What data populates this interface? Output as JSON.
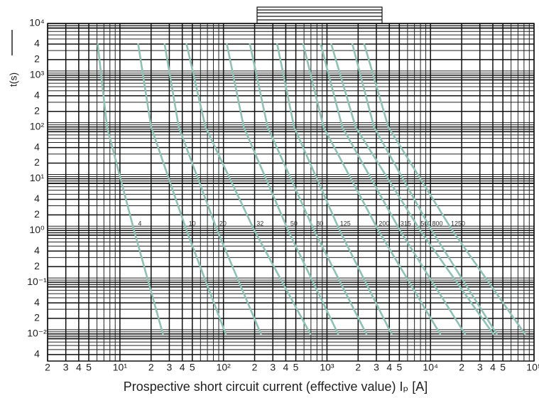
{
  "chart_data": {
    "type": "line",
    "x_label": "Prospective short circuit current (effective value) Iₚ [A]",
    "y_label": "t(s)",
    "log_x": true,
    "log_y": true,
    "grid": true,
    "minor_grid": true,
    "xlim": [
      2,
      100000
    ],
    "ylim": [
      0.003,
      10000
    ],
    "xticks": [
      2,
      3,
      4,
      5,
      {
        "value": 10,
        "label": "10¹"
      },
      {
        "value": 20,
        "label": "2"
      },
      {
        "value": 30,
        "label": "3"
      },
      {
        "value": 40,
        "label": "4"
      },
      {
        "value": 50,
        "label": "5"
      },
      {
        "value": 100,
        "label": "10²"
      },
      {
        "value": 200,
        "label": "2"
      },
      {
        "value": 300,
        "label": "3"
      },
      {
        "value": 400,
        "label": "4"
      },
      {
        "value": 500,
        "label": "5"
      },
      {
        "value": 1000,
        "label": "10³"
      },
      {
        "value": 2000,
        "label": "2"
      },
      {
        "value": 3000,
        "label": "3"
      },
      {
        "value": 4000,
        "label": "4"
      },
      {
        "value": 5000,
        "label": "5"
      },
      {
        "value": 10000,
        "label": "10⁴"
      },
      {
        "value": 20000,
        "label": "2"
      },
      {
        "value": 30000,
        "label": "3"
      },
      {
        "value": 40000,
        "label": "4"
      },
      {
        "value": 50000,
        "label": "5"
      },
      {
        "value": 100000,
        "label": "10⁵"
      }
    ],
    "yticks": [
      {
        "value": 10000,
        "label": "10⁴"
      },
      {
        "value": 4000,
        "label": "4"
      },
      {
        "value": 2000,
        "label": "2"
      },
      {
        "value": 1000,
        "label": "10³"
      },
      {
        "value": 400,
        "label": "4"
      },
      {
        "value": 200,
        "label": "2"
      },
      {
        "value": 100,
        "label": "10²"
      },
      {
        "value": 40,
        "label": "4"
      },
      {
        "value": 20,
        "label": "2"
      },
      {
        "value": 10,
        "label": "10¹"
      },
      4,
      2,
      {
        "value": 1,
        "label": "10⁰"
      },
      {
        "value": 0.4,
        "label": "4"
      },
      {
        "value": 0.2,
        "label": "2"
      },
      {
        "value": 0.1,
        "label": "10⁻¹"
      },
      {
        "value": 0.04,
        "label": "4"
      },
      {
        "value": 0.02,
        "label": "2"
      },
      {
        "value": 0.01,
        "label": "10⁻²"
      },
      {
        "value": 0.004,
        "label": "4"
      }
    ],
    "series": [
      {
        "name": "4",
        "color": "#8fc1b5",
        "x": [
          6.1,
          7.5,
          13.7,
          26
        ],
        "values": [
          4000,
          100,
          1,
          0.01
        ]
      },
      {
        "name": "10",
        "color": "#8fc1b5",
        "x": [
          15,
          20,
          44,
          105
        ],
        "values": [
          4000,
          100,
          1,
          0.01
        ]
      },
      {
        "name": "20",
        "color": "#8fc1b5",
        "x": [
          27,
          37,
          87,
          230
        ],
        "values": [
          4000,
          100,
          1,
          0.01
        ]
      },
      {
        "name": "32",
        "color": "#8fc1b5",
        "x": [
          44,
          67,
          199,
          690
        ],
        "values": [
          4000,
          100,
          1,
          0.01
        ]
      },
      {
        "name": "50",
        "color": "#8fc1b5",
        "x": [
          108,
          157,
          422,
          1280
        ],
        "values": [
          4000,
          100,
          1,
          0.01
        ]
      },
      {
        "name": "80",
        "color": "#8fc1b5",
        "x": [
          180,
          267,
          752,
          2400
        ],
        "values": [
          4000,
          100,
          1,
          0.01
        ]
      },
      {
        "name": "125",
        "color": "#8fc1b5",
        "x": [
          330,
          481,
          1325,
          4200
        ],
        "values": [
          4000,
          100,
          1,
          0.01
        ]
      },
      {
        "name": "200",
        "color": "#8fc1b5",
        "x": [
          590,
          925,
          3140,
          12400
        ],
        "values": [
          4000,
          100,
          1,
          0.01
        ]
      },
      {
        "name": "315",
        "color": "#8fc1b5",
        "x": [
          870,
          1406,
          5080,
          21500
        ],
        "values": [
          4000,
          100,
          1,
          0.01
        ]
      },
      {
        "name": "500",
        "color": "#8fc1b5",
        "x": [
          1100,
          1888,
          7960,
          40300
        ],
        "values": [
          4000,
          100,
          1,
          0.01
        ]
      },
      {
        "name": "800",
        "color": "#8fc1b5",
        "x": [
          1760,
          2845,
          10280,
          43600
        ],
        "values": [
          4000,
          100,
          1,
          0.01
        ]
      },
      {
        "name": "1250",
        "color": "#8fc1b5",
        "x": [
          2290,
          3910,
          16260,
          81600
        ],
        "values": [
          4000,
          100,
          1,
          0.01
        ]
      }
    ]
  }
}
